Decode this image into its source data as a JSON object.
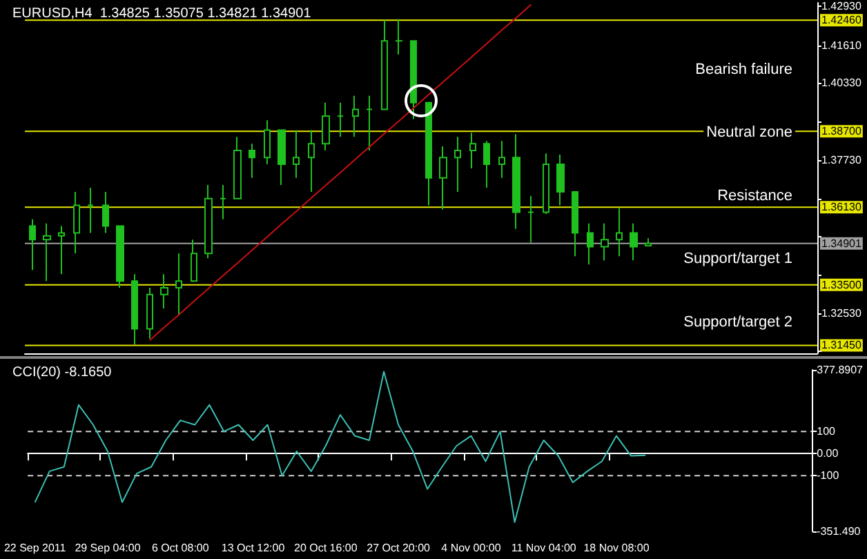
{
  "chart_data": [
    {
      "type": "candlestick",
      "title": "EURUSD,H4  1.34825 1.35075 1.34821 1.34901",
      "tick_labels": "y",
      "categories": [
        null,
        null,
        null,
        null,
        null,
        null,
        null,
        null,
        null,
        null,
        null,
        null,
        null,
        null,
        null,
        null,
        null,
        null,
        null,
        null,
        null,
        null,
        null,
        null,
        null,
        null,
        null,
        null,
        null,
        null,
        null,
        null,
        null,
        null,
        null,
        null,
        null,
        null,
        null,
        null,
        null,
        null,
        null,
        null,
        null,
        null,
        null,
        null,
        null,
        null,
        null,
        null,
        null,
        null
      ],
      "ylim": [
        1.3118,
        1.4305
      ],
      "yticks": [
        {
          "value": 1.3125,
          "label": null
        },
        {
          "value": 1.3253,
          "label": "1.32530"
        },
        {
          "value": 1.3381,
          "label": null
        },
        {
          "value": 1.3513,
          "label": null
        },
        {
          "value": 1.3641,
          "label": null
        },
        {
          "value": 1.3773,
          "label": "1.37730"
        },
        {
          "value": 1.3901,
          "label": null
        },
        {
          "value": 1.4033,
          "label": "1.40330"
        },
        {
          "value": 1.4161,
          "label": "1.41610"
        },
        {
          "value": 1.4293,
          "label": "1.42930"
        }
      ],
      "series": [
        {
          "color": "#1fc01f",
          "ohlc": [
            [
              1.3549,
              1.3572,
              1.34,
              1.3503
            ],
            [
              1.3503,
              1.3558,
              1.3363,
              1.3516
            ],
            [
              1.3516,
              1.3549,
              1.3386,
              1.3526
            ],
            [
              1.3526,
              1.3665,
              1.3456,
              1.3619
            ],
            [
              1.3619,
              1.3679,
              1.3526,
              1.3619
            ],
            [
              1.3619,
              1.3665,
              1.3526,
              1.3549
            ],
            [
              1.3549,
              1.3549,
              1.334,
              1.3363
            ],
            [
              1.3363,
              1.3386,
              1.3147,
              1.3201
            ],
            [
              1.3201,
              1.334,
              1.3168,
              1.3317
            ],
            [
              1.3317,
              1.3386,
              1.327,
              1.334
            ],
            [
              1.334,
              1.3456,
              1.3247,
              1.3363
            ],
            [
              1.3363,
              1.3503,
              1.336,
              1.3456
            ],
            [
              1.3456,
              1.3688,
              1.344,
              1.3642
            ],
            [
              1.3642,
              1.3688,
              1.3572,
              1.3642
            ],
            [
              1.3642,
              1.3851,
              1.3642,
              1.3805
            ],
            [
              1.3805,
              1.3828,
              1.3712,
              1.3781
            ],
            [
              1.3781,
              1.3907,
              1.3758,
              1.3874
            ],
            [
              1.3874,
              1.3874,
              1.3688,
              1.3758
            ],
            [
              1.3758,
              1.3874,
              1.3712,
              1.3781
            ],
            [
              1.3781,
              1.3874,
              1.3665,
              1.3828
            ],
            [
              1.3828,
              1.3967,
              1.3805,
              1.3921
            ],
            [
              1.3921,
              1.3967,
              1.3851,
              1.3921
            ],
            [
              1.3921,
              1.399,
              1.3851,
              1.3944
            ],
            [
              1.3944,
              1.399,
              1.3805,
              1.3944
            ],
            [
              1.3944,
              1.4246,
              1.3944,
              1.4176
            ],
            [
              1.4176,
              1.425,
              1.413,
              1.4176
            ],
            [
              1.4176,
              1.4176,
              1.3911,
              1.3967
            ],
            [
              1.3967,
              1.3967,
              1.3619,
              1.3712
            ],
            [
              1.3712,
              1.3819,
              1.3605,
              1.3781
            ],
            [
              1.3781,
              1.3851,
              1.3665,
              1.3805
            ],
            [
              1.3805,
              1.3865,
              1.3744,
              1.3828
            ],
            [
              1.3828,
              1.3837,
              1.3679,
              1.3758
            ],
            [
              1.3758,
              1.3837,
              1.3712,
              1.3781
            ],
            [
              1.3781,
              1.386,
              1.354,
              1.3596
            ],
            [
              1.3596,
              1.3651,
              1.3493,
              1.3596
            ],
            [
              1.3596,
              1.3795,
              1.359,
              1.3758
            ],
            [
              1.3758,
              1.3791,
              1.3619,
              1.3665
            ],
            [
              1.3665,
              1.3665,
              1.3447,
              1.3526
            ],
            [
              1.3526,
              1.3558,
              1.3419,
              1.3479
            ],
            [
              1.3479,
              1.3558,
              1.3433,
              1.3503
            ],
            [
              1.3503,
              1.361,
              1.3447,
              1.3526
            ],
            [
              1.3526,
              1.3558,
              1.3433,
              1.3479
            ],
            [
              1.34825,
              1.35075,
              1.34821,
              1.34901
            ],
            null,
            null,
            null,
            null,
            null,
            null,
            null,
            null,
            null,
            null,
            null
          ]
        },
        {
          "type": "line",
          "color": "#c81010",
          "values": [
            null,
            null,
            null,
            null,
            null,
            null,
            null,
            null,
            1.3162,
            1.3206,
            1.3249,
            1.3293,
            1.3337,
            1.3381,
            1.3424,
            1.3468,
            1.3512,
            1.3556,
            1.3599,
            1.3643,
            1.3687,
            1.373,
            1.3774,
            1.3818,
            1.3862,
            1.3905,
            1.3949,
            1.3993,
            1.4037,
            1.408,
            1.4124,
            1.4168,
            1.4212,
            1.4255,
            1.4299,
            null,
            null,
            null,
            null,
            null,
            null,
            null,
            null,
            null,
            null,
            null,
            null,
            null,
            null,
            null,
            null,
            null,
            null,
            null
          ]
        }
      ],
      "ref_lines": [
        {
          "axis": "y",
          "value": 1.4246,
          "label": "1.42460",
          "color": "#e6e600"
        },
        {
          "axis": "y",
          "value": 1.387,
          "label": "1.38700",
          "color": "#e6e600"
        },
        {
          "axis": "y",
          "value": 1.3613,
          "label": "1.36130",
          "color": "#e6e600"
        },
        {
          "axis": "y",
          "value": 1.34901,
          "label": "1.34901",
          "color": "#a0a0a0"
        },
        {
          "axis": "y",
          "value": 1.335,
          "label": "1.33500",
          "color": "#e6e600"
        },
        {
          "axis": "y",
          "value": 1.3145,
          "label": "1.31450",
          "color": "#e6e600"
        }
      ],
      "annotations": [
        "Bearish failure",
        "Neutral zone",
        "Resistance",
        "Support/target 1",
        "Support/target 2"
      ]
    },
    {
      "type": "line",
      "title": "CCI(20) -8.1650",
      "categories": [
        "22 Sep 2011",
        null,
        null,
        null,
        null,
        "29 Sep 04:00",
        null,
        null,
        null,
        null,
        "6 Oct 08:00",
        null,
        null,
        null,
        null,
        "13 Oct 12:00",
        null,
        null,
        null,
        null,
        "20 Oct 16:00",
        null,
        null,
        null,
        null,
        "27 Oct 20:00",
        null,
        null,
        null,
        null,
        "4 Nov 00:00",
        null,
        null,
        null,
        null,
        "11 Nov 04:00",
        null,
        null,
        null,
        null,
        "18 Nov 08:00",
        null,
        null,
        null,
        null,
        null,
        null,
        null,
        null,
        null,
        null,
        null,
        null,
        null
      ],
      "ylim": [
        -351.49,
        377.8907
      ],
      "yticks": [
        {
          "value": -351.49,
          "label": "-351.490"
        },
        -100,
        {
          "value": 0,
          "label": "0.00"
        },
        100,
        {
          "value": 377.8907,
          "label": "377.8907"
        }
      ],
      "series": [
        {
          "color": "#3cc0b4",
          "values": [
            -220,
            -80,
            -60,
            220,
            130,
            10,
            -220,
            -90,
            -60,
            60,
            150,
            130,
            220,
            100,
            130,
            60,
            130,
            -100,
            10,
            -80,
            35,
            175,
            80,
            60,
            370,
            130,
            10,
            -160,
            -60,
            35,
            80,
            -35,
            100,
            -310,
            -60,
            60,
            -10,
            -130,
            -80,
            -35,
            80,
            -10,
            -8,
            null,
            null,
            null,
            null,
            null,
            null,
            null,
            null,
            null,
            null,
            null
          ]
        }
      ],
      "ref_lines": [
        {
          "axis": "y",
          "value": 100,
          "color": "#d0d0d0",
          "line_style": "dashed"
        },
        {
          "axis": "y",
          "value": -100,
          "color": "#d0d0d0",
          "line_style": "dashed"
        }
      ]
    }
  ]
}
